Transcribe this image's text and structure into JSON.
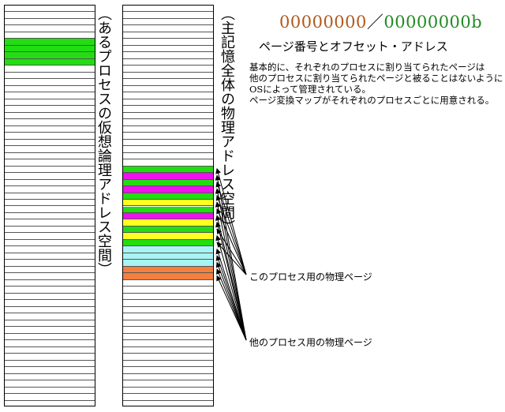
{
  "labels": {
    "virtual_space": "（あるプロセスの仮想論理アドレス空間）",
    "physical_space": "（主記憶全体の物理アドレス空間）"
  },
  "address": {
    "page_number_bits": "00000000",
    "separator": "／",
    "offset_bits": "00000000b",
    "page_number_color": "#b05a1e",
    "offset_color": "#228b22"
  },
  "heading": "ページ番号とオフセット・アドレス",
  "description": [
    "基本的に、それぞれのプロセスに割り当てられたページは",
    "他のプロセスに割り当てられたページと被ることはないように",
    "OSによって管理されている。",
    "ページ変換マップがそれぞれのプロセスごとに用意される。"
  ],
  "callouts": {
    "own_pages": "このプロセス用の物理ページ",
    "other_pages": "他のプロセス用の物理ページ"
  },
  "colors": {
    "own_process": "#22dd11",
    "magenta": "#ee11ee",
    "yellow": "#ffff22",
    "cyan": "#a8f4f4",
    "orange": "#f57f3f"
  },
  "virtual_blocks": [
    {
      "start": 5,
      "end": 9,
      "color": "green"
    }
  ],
  "physical_blocks": [
    {
      "start": 24,
      "end": 25,
      "color": "green"
    },
    {
      "start": 25,
      "end": 26,
      "color": "magenta"
    },
    {
      "start": 26,
      "end": 27,
      "color": "green"
    },
    {
      "start": 27,
      "end": 28,
      "color": "magenta"
    },
    {
      "start": 28,
      "end": 29,
      "color": "green"
    },
    {
      "start": 29,
      "end": 30,
      "color": "yellow"
    },
    {
      "start": 30,
      "end": 31,
      "color": "green"
    },
    {
      "start": 31,
      "end": 32,
      "color": "magenta"
    },
    {
      "start": 32,
      "end": 33,
      "color": "yellow"
    },
    {
      "start": 33,
      "end": 34,
      "color": "green"
    },
    {
      "start": 34,
      "end": 35,
      "color": "yellow"
    },
    {
      "start": 35,
      "end": 36,
      "color": "green"
    },
    {
      "start": 36,
      "end": 39,
      "color": "cyan"
    },
    {
      "start": 39,
      "end": 41,
      "color": "orange"
    }
  ]
}
